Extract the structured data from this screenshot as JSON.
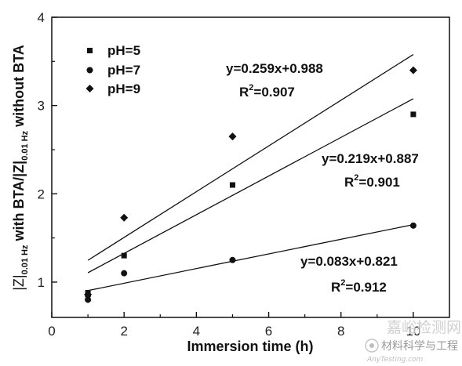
{
  "chart_data": {
    "type": "scatter",
    "xlabel": "Immersion time (h)",
    "ylabel": {
      "part1": "|Z|",
      "sub1": "0.01 Hz",
      "part2": " with BTA/|Z|",
      "sub2": "0.01 Hz",
      "part3": " without BTA"
    },
    "xlim": [
      0,
      11
    ],
    "ylim": [
      0.6,
      4
    ],
    "xticks": [
      "0",
      "2",
      "4",
      "6",
      "8",
      "10"
    ],
    "yticks": [
      "1",
      "2",
      "3",
      "4"
    ],
    "series": [
      {
        "name": "pH=5",
        "marker": "square",
        "points": [
          [
            1,
            0.88
          ],
          [
            2,
            1.3
          ],
          [
            5,
            2.1
          ],
          [
            10,
            2.9
          ]
        ],
        "fit": {
          "slope": 0.219,
          "intercept": 0.887,
          "equation": "y=0.219x+0.887",
          "r2_label": "R",
          "r2_sup": "2",
          "r2_value": "=0.901"
        }
      },
      {
        "name": "pH=7",
        "marker": "circle",
        "points": [
          [
            1,
            0.8
          ],
          [
            1,
            0.85
          ],
          [
            2,
            1.1
          ],
          [
            5,
            1.25
          ],
          [
            10,
            1.64
          ]
        ],
        "fit": {
          "slope": 0.083,
          "intercept": 0.821,
          "equation": "y=0.083x+0.821",
          "r2_label": "R",
          "r2_sup": "2",
          "r2_value": "=0.912"
        }
      },
      {
        "name": "pH=9",
        "marker": "diamond",
        "points": [
          [
            1,
            0.86
          ],
          [
            2,
            1.73
          ],
          [
            5,
            2.65
          ],
          [
            10,
            3.4
          ]
        ],
        "fit": {
          "slope": 0.259,
          "intercept": 0.988,
          "equation": "y=0.259x+0.988",
          "r2_label": "R",
          "r2_sup": "2",
          "r2_value": "=0.907"
        }
      }
    ],
    "legend_position": "top-left"
  },
  "watermark": {
    "line1": "嘉峪检测网",
    "line2": "材料科学与工程",
    "line3": "AnyTesting.com"
  },
  "colors": {
    "ink": "#111111",
    "watermark": "#c8c8c8"
  }
}
